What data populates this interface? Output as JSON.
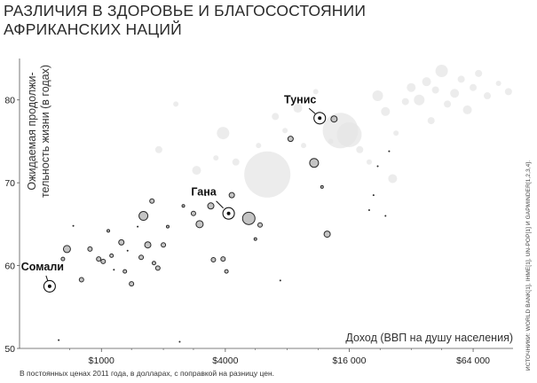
{
  "title_lines": [
    "РАЗЛИЧИЯ В ЗДОРОВЬЕ И БЛАГОСОСТОЯНИИ",
    "АФРИКАНСКИХ НАЦИЙ"
  ],
  "footnote": "В постоянных ценах 2011 года, в долларах, с поправкой на разницу цен.",
  "sources": "ИСТОЧНИКИ: WORLD BANK[1], IHME[1], UN-POP[1] И GAPMINDER[1,2,3,4].",
  "chart_data": {
    "type": "scatter",
    "xscale": "log2",
    "xlim": [
      400,
      100000
    ],
    "ylim": [
      50,
      85
    ],
    "grid": false,
    "xlabel": "Доход (ВВП на душу населения)",
    "ylabel_lines": [
      "Ожидаемая продолжи-",
      "тельность жизни (в годах)"
    ],
    "x_ticks": [
      {
        "value": 1000,
        "label": "$1000"
      },
      {
        "value": 4000,
        "label": "$4000"
      },
      {
        "value": 16000,
        "label": "$16 000"
      },
      {
        "value": 64000,
        "label": "$64 000"
      }
    ],
    "y_ticks": [
      50,
      60,
      70,
      80
    ],
    "highlighted": [
      {
        "label": "Сомали",
        "x": 560,
        "y": 57.5
      },
      {
        "label": "Гана",
        "x": 4150,
        "y": 66.3
      },
      {
        "label": "Тунис",
        "x": 11500,
        "y": 77.8
      }
    ],
    "african_nations": [
      {
        "x": 620,
        "y": 51,
        "r": 1
      },
      {
        "x": 650,
        "y": 60.8,
        "r": 2
      },
      {
        "x": 680,
        "y": 62,
        "r": 4
      },
      {
        "x": 730,
        "y": 64.8,
        "r": 1
      },
      {
        "x": 800,
        "y": 58.3,
        "r": 2.5
      },
      {
        "x": 880,
        "y": 62,
        "r": 2.5
      },
      {
        "x": 970,
        "y": 60.8,
        "r": 2.5
      },
      {
        "x": 1020,
        "y": 60.5,
        "r": 2.5
      },
      {
        "x": 1080,
        "y": 64.2,
        "r": 1.5
      },
      {
        "x": 1120,
        "y": 61.2,
        "r": 2
      },
      {
        "x": 1150,
        "y": 59.5,
        "r": 1
      },
      {
        "x": 1250,
        "y": 62.8,
        "r": 3
      },
      {
        "x": 1300,
        "y": 59.3,
        "r": 2
      },
      {
        "x": 1340,
        "y": 61.8,
        "r": 1
      },
      {
        "x": 1400,
        "y": 57.8,
        "r": 2.5
      },
      {
        "x": 1500,
        "y": 64.7,
        "r": 1
      },
      {
        "x": 1560,
        "y": 61,
        "r": 2.5
      },
      {
        "x": 1600,
        "y": 66,
        "r": 5
      },
      {
        "x": 1680,
        "y": 62.5,
        "r": 3.5
      },
      {
        "x": 1760,
        "y": 67.8,
        "r": 2.5
      },
      {
        "x": 1800,
        "y": 60.3,
        "r": 2
      },
      {
        "x": 1880,
        "y": 59.7,
        "r": 2.5
      },
      {
        "x": 2000,
        "y": 62.5,
        "r": 2.5
      },
      {
        "x": 2100,
        "y": 64.7,
        "r": 1.5
      },
      {
        "x": 2400,
        "y": 50.8,
        "r": 1
      },
      {
        "x": 2500,
        "y": 67.2,
        "r": 1.5
      },
      {
        "x": 2800,
        "y": 66.3,
        "r": 2.5
      },
      {
        "x": 3000,
        "y": 65,
        "r": 4
      },
      {
        "x": 3200,
        "y": 68.5,
        "r": 1
      },
      {
        "x": 3400,
        "y": 67.2,
        "r": 3.5
      },
      {
        "x": 3500,
        "y": 60.7,
        "r": 2.5
      },
      {
        "x": 3900,
        "y": 60.8,
        "r": 2.5
      },
      {
        "x": 4050,
        "y": 59.3,
        "r": 2
      },
      {
        "x": 4300,
        "y": 68.5,
        "r": 3
      },
      {
        "x": 5200,
        "y": 65.7,
        "r": 7
      },
      {
        "x": 5600,
        "y": 63.2,
        "r": 1.5
      },
      {
        "x": 5900,
        "y": 64.9,
        "r": 2.5
      },
      {
        "x": 7400,
        "y": 58.2,
        "r": 1
      },
      {
        "x": 8300,
        "y": 75.3,
        "r": 3
      },
      {
        "x": 10800,
        "y": 72.4,
        "r": 5
      },
      {
        "x": 11800,
        "y": 69.5,
        "r": 1.5
      },
      {
        "x": 12500,
        "y": 63.8,
        "r": 3.5
      },
      {
        "x": 13500,
        "y": 77.7,
        "r": 3.5
      },
      {
        "x": 20000,
        "y": 66.7,
        "r": 1
      },
      {
        "x": 21000,
        "y": 68.5,
        "r": 1
      },
      {
        "x": 22000,
        "y": 72,
        "r": 1
      },
      {
        "x": 24000,
        "y": 66,
        "r": 1
      },
      {
        "x": 25000,
        "y": 73.8,
        "r": 1
      }
    ],
    "other_nations": [
      {
        "x": 1900,
        "y": 74,
        "r": 4
      },
      {
        "x": 2300,
        "y": 79.5,
        "r": 3
      },
      {
        "x": 2900,
        "y": 71.5,
        "r": 5
      },
      {
        "x": 3600,
        "y": 73,
        "r": 3
      },
      {
        "x": 3900,
        "y": 76,
        "r": 7
      },
      {
        "x": 4500,
        "y": 72.5,
        "r": 4
      },
      {
        "x": 5800,
        "y": 74.5,
        "r": 3
      },
      {
        "x": 6400,
        "y": 71,
        "r": 26
      },
      {
        "x": 7000,
        "y": 78,
        "r": 4
      },
      {
        "x": 7800,
        "y": 76.3,
        "r": 3
      },
      {
        "x": 9000,
        "y": 79,
        "r": 5
      },
      {
        "x": 9600,
        "y": 74.5,
        "r": 3
      },
      {
        "x": 11000,
        "y": 81,
        "r": 3
      },
      {
        "x": 13000,
        "y": 75,
        "r": 3
      },
      {
        "x": 14500,
        "y": 76.3,
        "r": 20
      },
      {
        "x": 16000,
        "y": 75.8,
        "r": 14
      },
      {
        "x": 18000,
        "y": 74,
        "r": 4
      },
      {
        "x": 20000,
        "y": 72.5,
        "r": 3
      },
      {
        "x": 22000,
        "y": 80.5,
        "r": 6
      },
      {
        "x": 24000,
        "y": 78.6,
        "r": 5
      },
      {
        "x": 26000,
        "y": 70.5,
        "r": 5
      },
      {
        "x": 27000,
        "y": 76,
        "r": 3
      },
      {
        "x": 30000,
        "y": 79.8,
        "r": 4
      },
      {
        "x": 32000,
        "y": 81.5,
        "r": 5
      },
      {
        "x": 35000,
        "y": 80,
        "r": 6
      },
      {
        "x": 38000,
        "y": 82.2,
        "r": 5
      },
      {
        "x": 40000,
        "y": 77.5,
        "r": 4
      },
      {
        "x": 42000,
        "y": 81.2,
        "r": 4
      },
      {
        "x": 45000,
        "y": 83.5,
        "r": 7
      },
      {
        "x": 48000,
        "y": 79.5,
        "r": 4
      },
      {
        "x": 52000,
        "y": 80.8,
        "r": 5
      },
      {
        "x": 56000,
        "y": 82.5,
        "r": 4
      },
      {
        "x": 60000,
        "y": 78.8,
        "r": 5
      },
      {
        "x": 64000,
        "y": 81.5,
        "r": 4
      },
      {
        "x": 68000,
        "y": 83.2,
        "r": 4
      },
      {
        "x": 75000,
        "y": 80.5,
        "r": 4
      },
      {
        "x": 85000,
        "y": 82,
        "r": 3
      },
      {
        "x": 95000,
        "y": 81,
        "r": 4
      }
    ],
    "colors": {
      "african_fill": "#c4c4c4",
      "african_stroke": "#2a2a2a",
      "other_fill": "#e6e6e6",
      "axis": "#555555",
      "text": "#222222"
    }
  }
}
